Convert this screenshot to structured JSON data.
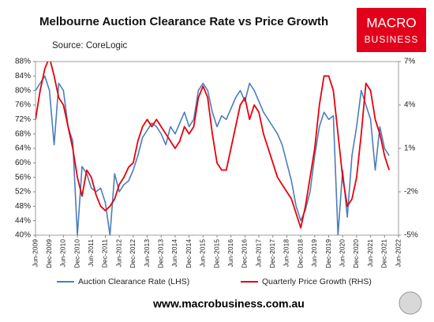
{
  "chart_data": {
    "type": "line",
    "title": "Melbourne Auction Clearance Rate vs Price Growth",
    "subtitle": "Source: CoreLogic",
    "categories": [
      "Jun-2009",
      null,
      null,
      "Dec-2009",
      null,
      null,
      "Jun-2010",
      null,
      null,
      "Dec-2010",
      null,
      null,
      "Jun-2011",
      null,
      null,
      "Dec-2011",
      null,
      null,
      "Jun-2012",
      null,
      null,
      "Dec-2012",
      null,
      null,
      "Jun-2013",
      null,
      null,
      "Dec-2013",
      null,
      null,
      "Jun-2014",
      null,
      null,
      "Dec-2014",
      null,
      null,
      "Jun-2015",
      null,
      null,
      "Dec-2015",
      null,
      null,
      "Jun-2016",
      null,
      null,
      "Dec-2016",
      null,
      null,
      "Jun-2017",
      null,
      null,
      "Dec-2017",
      null,
      null,
      "Jun-2018",
      null,
      null,
      "Dec-2018",
      null,
      null,
      "Jun-2019",
      null,
      null,
      "Dec-2019",
      null,
      null,
      "Jun-2020",
      null,
      null,
      "Dec-2020",
      null,
      null,
      "Jun-2021",
      null,
      null,
      "Dec-2021",
      null,
      null,
      "Jun-2022"
    ],
    "series": [
      {
        "name": "Auction Clearance Rate (LHS)",
        "color": "#4a7ebb",
        "axis": "y",
        "values": [
          80,
          82,
          84,
          80,
          65,
          82,
          80,
          70,
          66,
          40,
          59,
          57,
          53,
          52,
          53,
          49,
          40,
          57,
          52,
          54,
          55,
          58,
          62,
          67,
          69,
          71,
          70,
          68,
          65,
          70,
          68,
          71,
          74,
          70,
          72,
          80,
          82,
          80,
          74,
          70,
          73,
          72,
          75,
          78,
          80,
          77,
          82,
          80,
          77,
          74,
          72,
          70,
          68,
          65,
          60,
          55,
          48,
          44,
          47,
          52,
          62,
          70,
          74,
          72,
          73,
          40,
          58,
          45,
          62,
          70,
          80,
          76,
          72,
          58,
          70,
          64,
          62,
          null,
          null
        ]
      },
      {
        "name": "Quarterly Price Growth (RHS)",
        "color": "#e8000b",
        "axis": "y2",
        "values": [
          3,
          5,
          6.5,
          7.3,
          6,
          4.5,
          4,
          2.5,
          1,
          -1,
          -2.3,
          -0.5,
          -1,
          -2.2,
          -3,
          -3.3,
          -3,
          -2.5,
          -1.5,
          -1,
          -0.3,
          0,
          1.5,
          2.5,
          3,
          2.5,
          3,
          2.5,
          2,
          1.5,
          1,
          1.5,
          2.5,
          2,
          2.5,
          4.5,
          5.3,
          4.5,
          2,
          0,
          -0.5,
          -0.5,
          1,
          2.5,
          4,
          4.5,
          3,
          4,
          3.5,
          2,
          1,
          0,
          -1,
          -1.5,
          -2,
          -2.5,
          -3.5,
          -4.5,
          -3,
          -1,
          1,
          4,
          6,
          6,
          5,
          2,
          -1,
          -3,
          -2.5,
          -1,
          2,
          5.5,
          5,
          3,
          2,
          0.5,
          -0.5,
          null,
          null
        ]
      }
    ],
    "ylim": [
      40,
      88
    ],
    "yticks": [
      {
        "value": 40,
        "label": "40%"
      },
      {
        "value": 44,
        "label": "44%"
      },
      {
        "value": 48,
        "label": "48%"
      },
      {
        "value": 52,
        "label": "52%"
      },
      {
        "value": 56,
        "label": "56%"
      },
      {
        "value": 60,
        "label": "60%"
      },
      {
        "value": 64,
        "label": "64%"
      },
      {
        "value": 68,
        "label": "68%"
      },
      {
        "value": 72,
        "label": "72%"
      },
      {
        "value": 76,
        "label": "76%"
      },
      {
        "value": 80,
        "label": "80%"
      },
      {
        "value": 84,
        "label": "84%"
      },
      {
        "value": 88,
        "label": "88%"
      }
    ],
    "y2lim": [
      -5,
      7
    ],
    "y2ticks": [
      {
        "value": -5,
        "label": "-5%"
      },
      {
        "value": -2,
        "label": "-2%"
      },
      {
        "value": 1,
        "label": "1%"
      },
      {
        "value": 4,
        "label": "4%"
      },
      {
        "value": 7,
        "label": "7%"
      }
    ],
    "grid": false,
    "legend": "bottom"
  },
  "branding": {
    "logo": [
      "MACRO",
      "BUSINESS"
    ],
    "website": "www.macrobusiness.com.au"
  }
}
